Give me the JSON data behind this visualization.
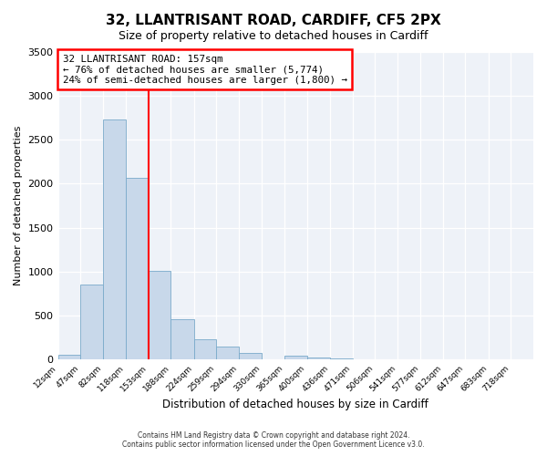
{
  "title": "32, LLANTRISANT ROAD, CARDIFF, CF5 2PX",
  "subtitle": "Size of property relative to detached houses in Cardiff",
  "xlabel": "Distribution of detached houses by size in Cardiff",
  "ylabel": "Number of detached properties",
  "bin_labels": [
    "12sqm",
    "47sqm",
    "82sqm",
    "118sqm",
    "153sqm",
    "188sqm",
    "224sqm",
    "259sqm",
    "294sqm",
    "330sqm",
    "365sqm",
    "400sqm",
    "436sqm",
    "471sqm",
    "506sqm",
    "541sqm",
    "577sqm",
    "612sqm",
    "647sqm",
    "683sqm",
    "718sqm"
  ],
  "bar_values": [
    55,
    850,
    2730,
    2070,
    1010,
    460,
    230,
    155,
    75,
    0,
    45,
    30,
    15,
    0,
    0,
    0,
    0,
    0,
    0,
    0,
    0
  ],
  "bin_edges": [
    12,
    47,
    82,
    118,
    153,
    188,
    224,
    259,
    294,
    330,
    365,
    400,
    436,
    471,
    506,
    541,
    577,
    612,
    647,
    683,
    718
  ],
  "bar_color": "#c8d8ea",
  "bar_edgecolor": "#7aaaca",
  "vline_x": 153,
  "vline_color": "red",
  "annotation_title": "32 LLANTRISANT ROAD: 157sqm",
  "annotation_line1": "← 76% of detached houses are smaller (5,774)",
  "annotation_line2": "24% of semi-detached houses are larger (1,800) →",
  "annotation_box_edgecolor": "red",
  "ylim": [
    0,
    3500
  ],
  "yticks": [
    0,
    500,
    1000,
    1500,
    2000,
    2500,
    3000,
    3500
  ],
  "footer1": "Contains HM Land Registry data © Crown copyright and database right 2024.",
  "footer2": "Contains public sector information licensed under the Open Government Licence v3.0.",
  "bg_color": "#ffffff",
  "plot_bg_color": "#eef2f8",
  "grid_color": "#ffffff",
  "title_fontsize": 11,
  "subtitle_fontsize": 9
}
